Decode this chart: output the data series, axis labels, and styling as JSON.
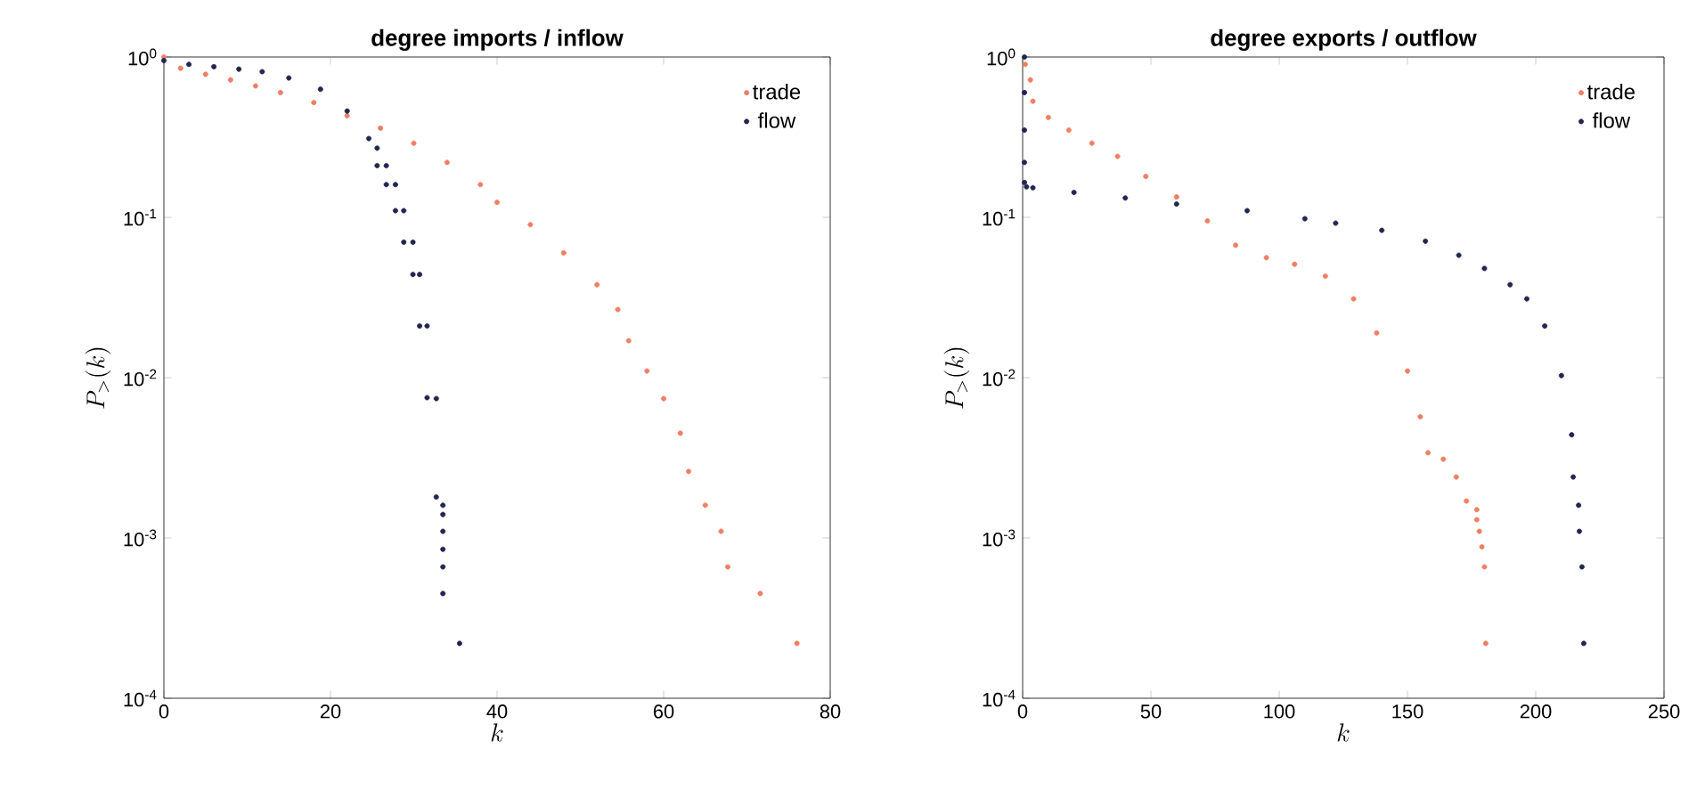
{
  "chart_data": [
    {
      "type": "scatter",
      "title": "degree imports / inflow",
      "xlabel": "k",
      "ylabel": "P_{>}(k)",
      "log": "y",
      "xlim": [
        0,
        80
      ],
      "xticks": [
        0,
        20,
        40,
        60,
        80
      ],
      "ylim": [
        0.0001,
        1
      ],
      "yticks": [
        {
          "value": 1,
          "label": "10$^{0}$"
        },
        {
          "value": 0.1,
          "label": "10$^{-1}$"
        },
        {
          "value": 0.01,
          "label": "10$^{-2}$"
        },
        {
          "value": 0.001,
          "label": "10$^{-3}$"
        },
        {
          "value": 0.0001,
          "label": "10$^{-4}$"
        }
      ],
      "legend": "top right",
      "grid": false,
      "series": [
        {
          "name": "trade",
          "color": "#f07f65",
          "x": [
            0,
            2,
            5,
            8,
            11,
            14,
            18,
            22,
            26,
            30,
            34,
            38,
            40,
            44,
            48,
            52,
            54.5,
            55.8,
            58,
            60,
            62,
            63,
            65,
            66.9,
            67.7,
            71.6,
            76
          ],
          "values": [
            1,
            0.85,
            0.78,
            0.72,
            0.66,
            0.6,
            0.52,
            0.43,
            0.36,
            0.29,
            0.22,
            0.16,
            0.124,
            0.09,
            0.06,
            0.038,
            0.0266,
            0.017,
            0.011,
            0.0074,
            0.0045,
            0.0026,
            0.0016,
            0.0011,
            0.00066,
            0.00045,
            0.00022
          ]
        },
        {
          "name": "flow",
          "color": "#22264f",
          "x": [
            0,
            3,
            6,
            9,
            11.8,
            15,
            18.8,
            22,
            24.6,
            25.6,
            25.6,
            26.7,
            26.7,
            27.8,
            27.8,
            28.8,
            28.8,
            29.9,
            29.9,
            30.7,
            30.7,
            31.6,
            31.6,
            32.7,
            32.7,
            33.5,
            33.5,
            33.5,
            33.5,
            33.5,
            33.5,
            35.5
          ],
          "values": [
            0.95,
            0.9,
            0.87,
            0.84,
            0.81,
            0.74,
            0.63,
            0.46,
            0.31,
            0.27,
            0.21,
            0.21,
            0.16,
            0.16,
            0.11,
            0.11,
            0.07,
            0.07,
            0.044,
            0.044,
            0.021,
            0.021,
            0.0075,
            0.0074,
            0.0018,
            0.0016,
            0.0014,
            0.0011,
            0.00085,
            0.00066,
            0.00045,
            0.00022
          ]
        }
      ]
    },
    {
      "type": "scatter",
      "title": "degree exports / outflow",
      "xlabel": "k",
      "ylabel": "P_{>}(k)",
      "log": "y",
      "xlim": [
        0,
        250
      ],
      "xticks": [
        0,
        50,
        100,
        150,
        200,
        250
      ],
      "ylim": [
        0.0001,
        1
      ],
      "yticks": [
        {
          "value": 1,
          "label": "10$^{0}$"
        },
        {
          "value": 0.1,
          "label": "10$^{-1}$"
        },
        {
          "value": 0.01,
          "label": "10$^{-2}$"
        },
        {
          "value": 0.001,
          "label": "10$^{-3}$"
        },
        {
          "value": 0.0001,
          "label": "10$^{-4}$"
        }
      ],
      "legend": "top right",
      "grid": false,
      "series": [
        {
          "name": "trade",
          "color": "#f07f65",
          "x": [
            1,
            3,
            4,
            10,
            18,
            27,
            37,
            48,
            60,
            72,
            83,
            95,
            106,
            118,
            129,
            138,
            150,
            155,
            158,
            164,
            169,
            173,
            177,
            177,
            178,
            179,
            180,
            180.5
          ],
          "values": [
            0.9,
            0.72,
            0.53,
            0.42,
            0.35,
            0.29,
            0.24,
            0.18,
            0.134,
            0.095,
            0.067,
            0.056,
            0.051,
            0.043,
            0.031,
            0.019,
            0.011,
            0.0057,
            0.0034,
            0.0031,
            0.0024,
            0.0017,
            0.0015,
            0.0013,
            0.0011,
            0.00088,
            0.00066,
            0.00022
          ]
        },
        {
          "name": "flow",
          "color": "#22264f",
          "x": [
            0.7,
            0.7,
            0.7,
            0.7,
            0.7,
            1.5,
            4,
            20,
            40,
            60,
            87.5,
            110,
            122,
            140,
            157,
            170,
            180,
            190,
            196.5,
            203.5,
            210,
            214,
            214.6,
            216.7,
            217,
            218,
            218.7
          ],
          "values": [
            1,
            0.6,
            0.35,
            0.22,
            0.165,
            0.155,
            0.153,
            0.143,
            0.132,
            0.121,
            0.11,
            0.098,
            0.092,
            0.083,
            0.071,
            0.058,
            0.048,
            0.038,
            0.031,
            0.021,
            0.0103,
            0.0044,
            0.0024,
            0.0016,
            0.0011,
            0.00066,
            0.00022
          ]
        }
      ]
    }
  ]
}
